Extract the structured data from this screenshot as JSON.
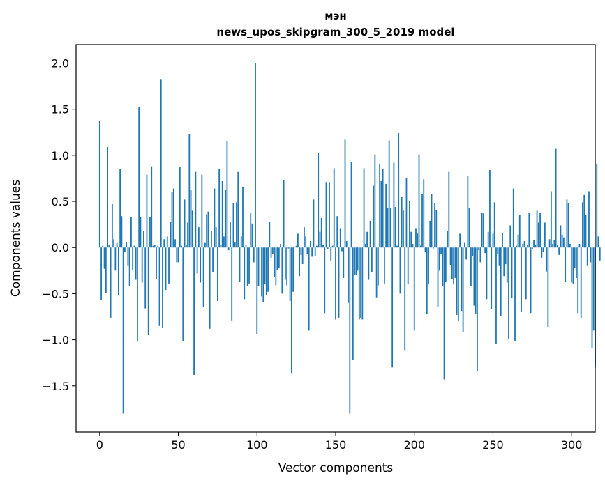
{
  "chart_data": {
    "type": "bar",
    "title": "мэн",
    "subtitle": "news_upos_skipgram_300_5_2019 model",
    "xlabel": "Vector components",
    "ylabel": "Components values",
    "xlim": [
      -15,
      315
    ],
    "ylim": [
      -2.0,
      2.2
    ],
    "x_ticks": [
      0,
      50,
      100,
      150,
      200,
      250,
      300
    ],
    "y_ticks": [
      -1.5,
      -1.0,
      -0.5,
      0.0,
      0.5,
      1.0,
      1.5,
      2.0
    ],
    "x_tick_labels": [
      "0",
      "50",
      "100",
      "150",
      "200",
      "250",
      "300"
    ],
    "y_tick_labels": [
      "−1.5",
      "−1.0",
      "−0.5",
      "0.0",
      "0.5",
      "1.0",
      "1.5",
      "2.0"
    ],
    "grid": false,
    "color": "#1f77b4",
    "values": [
      1.37,
      -0.57,
      0.02,
      -0.23,
      -0.49,
      1.09,
      0.03,
      -0.76,
      0.47,
      0.09,
      -0.25,
      0.05,
      -0.52,
      0.85,
      0.34,
      -1.8,
      -0.05,
      0.06,
      -0.2,
      -0.42,
      0.33,
      -0.24,
      0.02,
      -0.35,
      -1.02,
      1.52,
      0.33,
      -0.38,
      0.18,
      -0.66,
      0.79,
      -0.95,
      0.33,
      0.88,
      0.02,
      0.03,
      -0.34,
      0.02,
      -0.85,
      1.82,
      -0.87,
      0.09,
      -0.46,
      0.12,
      -0.39,
      0.28,
      0.6,
      0.64,
      0.09,
      -0.16,
      -0.16,
      0.87,
      0.02,
      -1.01,
      0.52,
      0.03,
      0.27,
      1.23,
      0.62,
      0.4,
      -1.38,
      0.82,
      -0.28,
      0.22,
      -0.38,
      0.79,
      -0.64,
      0.05,
      0.36,
      0.39,
      -0.88,
      0.18,
      -0.27,
      0.64,
      0.22,
      -0.58,
      0.85,
      0.03,
      0.72,
      0.12,
      0.63,
      1.15,
      -0.03,
      0.28,
      -0.79,
      0.48,
      0.06,
      0.49,
      0.82,
      -0.37,
      0.12,
      0.66,
      -0.56,
      0.03,
      -0.42,
      -0.39,
      0.38,
      0.26,
      -0.16,
      2.0,
      -0.94,
      -0.42,
      0.01,
      -0.53,
      -0.59,
      -0.4,
      -0.52,
      -0.48,
      0.28,
      -0.11,
      -0.07,
      -0.32,
      -0.41,
      -0.24,
      -0.22,
      0.04,
      -0.5,
      0.73,
      -0.35,
      -0.41,
      -0.01,
      -0.58,
      -1.36,
      -0.48,
      0.01,
      0.02,
      0.15,
      -0.31,
      -0.08,
      -0.18,
      0.22,
      0.12,
      -0.07,
      -0.9,
      0.07,
      -0.1,
      0.52,
      -0.09,
      0.02,
      1.03,
      0.17,
      0.32,
      0.03,
      -0.71,
      0.71,
      -0.02,
      0.71,
      -0.14,
      0.02,
      0.86,
      -0.78,
      0.34,
      -0.76,
      0.21,
      -0.04,
      -0.33,
      1.17,
      0.07,
      -0.6,
      -1.8,
      0.93,
      -1.22,
      -0.3,
      -0.3,
      -0.25,
      -0.78,
      -0.76,
      -0.78,
      0.86,
      0.04,
      0.17,
      -0.35,
      0.29,
      -0.27,
      0.67,
      1.01,
      -0.54,
      -0.41,
      0.91,
      0.72,
      0.85,
      -0.39,
      0.69,
      0.43,
      1.16,
      0.43,
      -1.3,
      0.92,
      0.44,
      0.02,
      1.24,
      -0.5,
      0.55,
      0.4,
      -1.11,
      0.75,
      -0.4,
      0.5,
      0.17,
      0.04,
      -0.9,
      0.21,
      0.15,
      1.01,
      0.02,
      0.58,
      0.74,
      -0.05,
      -0.72,
      -0.4,
      0.29,
      0.58,
      -0.01,
      0.48,
      0.41,
      -0.64,
      -0.25,
      -0.07,
      -0.42,
      -1.43,
      -0.37,
      0.18,
      0.82,
      -0.19,
      -0.34,
      -0.4,
      -0.33,
      -0.73,
      -0.8,
      0.15,
      -0.69,
      -0.92,
      0.05,
      -0.13,
      0.78,
      0.43,
      -0.42,
      -0.09,
      -0.63,
      -0.72,
      -1.34,
      -0.03,
      -0.16,
      0.38,
      0.37,
      -0.06,
      -0.56,
      0.17,
      0.84,
      -0.67,
      0.15,
      0.49,
      -1.04,
      -0.07,
      -0.2,
      -0.74,
      0.16,
      -0.31,
      -0.18,
      -0.38,
      -0.99,
      0.24,
      -0.55,
      0.64,
      -1.01,
      0.02,
      0.14,
      0.35,
      -0.7,
      0.04,
      0.07,
      -0.56,
      0.03,
      0.38,
      -0.71,
      -0.02,
      0.08,
      0.03,
      0.4,
      0.27,
      0.38,
      -0.11,
      -0.05,
      0.27,
      -0.26,
      -0.86,
      0.09,
      0.61,
      0.04,
      0.08,
      1.07,
      0.03,
      -0.08,
      0.24,
      0.14,
      0.11,
      -0.37,
      0.52,
      0.48,
      0.04,
      -0.38,
      -0.39,
      -0.22,
      -0.33,
      -0.71,
      0.04,
      -0.76,
      0.49,
      0.57,
      0.35,
      -0.2,
      0.61,
      -0.16,
      -1.09,
      -0.9,
      -1.3,
      0.91,
      0.12,
      -0.14
    ]
  }
}
